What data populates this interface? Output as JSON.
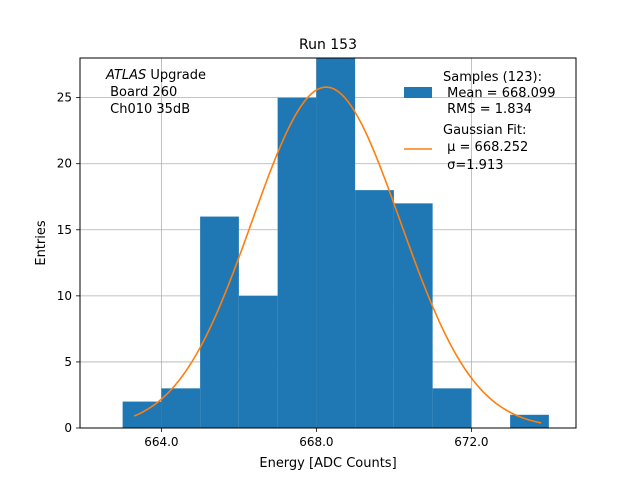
{
  "chart_data": {
    "type": "bar",
    "title": "Run 153",
    "xlabel": "Energy [ADC Counts]",
    "ylabel": "Entries",
    "xlim": [
      661.9,
      674.7
    ],
    "ylim": [
      0,
      28
    ],
    "grid": true,
    "xticks": [
      664.0,
      668.0,
      672.0
    ],
    "xtick_labels": [
      "664.0",
      "668.0",
      "672.0"
    ],
    "yticks": [
      0,
      5,
      10,
      15,
      20,
      25
    ],
    "annotation": {
      "italic": "ATLAS",
      "line1_rest": " Upgrade",
      "line2": " Board 260",
      "line3": " Ch010 35dB"
    },
    "histogram": {
      "bin_edges": [
        663.0,
        664.0,
        665.0,
        666.0,
        667.0,
        668.0,
        669.0,
        670.0,
        671.0,
        672.0,
        673.0,
        674.0
      ],
      "counts": [
        2,
        3,
        16,
        10,
        25,
        28,
        18,
        17,
        3,
        0,
        1
      ],
      "color": "#1f77b4"
    },
    "fit": {
      "function": "gaussian",
      "mu": 668.252,
      "sigma": 1.913,
      "amplitude": 25.8,
      "x_range": [
        663.3,
        673.8
      ],
      "color": "#ff7f0e"
    },
    "legend": {
      "placement": "top-right",
      "entries": [
        {
          "marker": "patch",
          "color": "#1f77b4",
          "lines": [
            "Samples (123):",
            " Mean = 668.099",
            " RMS = 1.834"
          ]
        },
        {
          "marker": "line",
          "color": "#ff7f0e",
          "lines": [
            "Gaussian Fit:",
            " μ = 668.252",
            " σ=1.913"
          ]
        }
      ]
    }
  }
}
